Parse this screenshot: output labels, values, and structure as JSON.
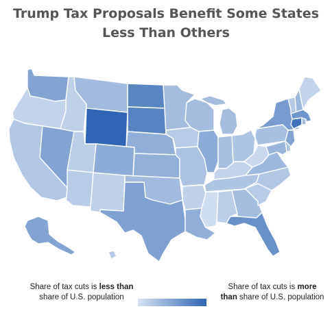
{
  "title": {
    "line1": "Trump Tax Proposals Benefit Some States",
    "line2": "Less Than Others"
  },
  "legend": {
    "low_prefix": "Share of tax cuts is ",
    "low_bold": "less than",
    "low_suffix": "share of U.S. population",
    "high_prefix": "Share of tax cuts is ",
    "high_bold_1": "more",
    "high_bold_2": "than",
    "high_suffix": " share of U.S. population"
  },
  "colors": {
    "scale_low": "#d6e2f2",
    "scale_high": "#2f65b4",
    "border": "#ffffff",
    "title": "#555555"
  },
  "map_data": {
    "type": "choropleth",
    "region": "United States",
    "scale": [
      0,
      1
    ],
    "states": [
      {
        "id": "WA",
        "value": 0.5
      },
      {
        "id": "OR",
        "value": 0.12
      },
      {
        "id": "CA",
        "value": 0.22
      },
      {
        "id": "NV",
        "value": 0.5
      },
      {
        "id": "ID",
        "value": 0.14
      },
      {
        "id": "MT",
        "value": 0.32
      },
      {
        "id": "WY",
        "value": 1.0
      },
      {
        "id": "UT",
        "value": 0.16
      },
      {
        "id": "AZ",
        "value": 0.18
      },
      {
        "id": "NM",
        "value": 0.14
      },
      {
        "id": "CO",
        "value": 0.44
      },
      {
        "id": "ND",
        "value": 0.74
      },
      {
        "id": "SD",
        "value": 0.76
      },
      {
        "id": "NE",
        "value": 0.42
      },
      {
        "id": "KS",
        "value": 0.4
      },
      {
        "id": "OK",
        "value": 0.32
      },
      {
        "id": "TX",
        "value": 0.52
      },
      {
        "id": "MN",
        "value": 0.3
      },
      {
        "id": "IA",
        "value": 0.18
      },
      {
        "id": "MO",
        "value": 0.26
      },
      {
        "id": "AR",
        "value": 0.14
      },
      {
        "id": "LA",
        "value": 0.42
      },
      {
        "id": "WI",
        "value": 0.3
      },
      {
        "id": "IL",
        "value": 0.44
      },
      {
        "id": "MI",
        "value": 0.3
      },
      {
        "id": "IN",
        "value": 0.28
      },
      {
        "id": "OH",
        "value": 0.24
      },
      {
        "id": "KY",
        "value": 0.12
      },
      {
        "id": "TN",
        "value": 0.24
      },
      {
        "id": "MS",
        "value": 0.04
      },
      {
        "id": "AL",
        "value": 0.16
      },
      {
        "id": "GA",
        "value": 0.3
      },
      {
        "id": "FL",
        "value": 0.66
      },
      {
        "id": "SC",
        "value": 0.18
      },
      {
        "id": "NC",
        "value": 0.22
      },
      {
        "id": "VA",
        "value": 0.34
      },
      {
        "id": "WV",
        "value": 0.08
      },
      {
        "id": "PA",
        "value": 0.28
      },
      {
        "id": "NY",
        "value": 0.56
      },
      {
        "id": "VT",
        "value": 0.2
      },
      {
        "id": "NH",
        "value": 0.34
      },
      {
        "id": "ME",
        "value": 0.12
      },
      {
        "id": "MA",
        "value": 0.62
      },
      {
        "id": "CT",
        "value": 0.9
      },
      {
        "id": "RI",
        "value": 0.3
      },
      {
        "id": "NJ",
        "value": 0.5
      },
      {
        "id": "DE",
        "value": 0.24
      },
      {
        "id": "MD",
        "value": 0.36
      },
      {
        "id": "AK",
        "value": 0.5
      },
      {
        "id": "HI",
        "value": 0.2
      }
    ]
  }
}
